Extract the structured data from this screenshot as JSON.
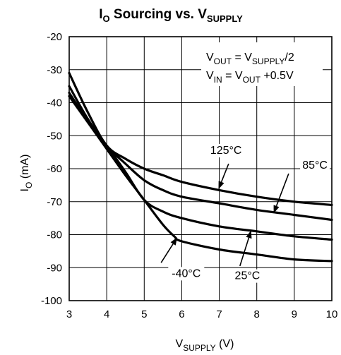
{
  "chart_data": {
    "type": "line",
    "title": {
      "pre": "I",
      "sub1": "O",
      "mid": " Sourcing vs. V",
      "sub2": "SUPPLY"
    },
    "xlabel": {
      "pre": "V",
      "sub": "SUPPLY",
      "post": " (V)"
    },
    "ylabel": {
      "pre": "I",
      "sub": "O",
      "post": " (mA)"
    },
    "xlim": [
      3,
      10
    ],
    "ylim": [
      -100,
      -20
    ],
    "xticks": [
      "3",
      "4",
      "5",
      "6",
      "7",
      "8",
      "9",
      "10"
    ],
    "yticks": [
      "-20",
      "-30",
      "-40",
      "-50",
      "-60",
      "-70",
      "-80",
      "-90",
      "-100"
    ],
    "grid": true,
    "conditions": [
      {
        "pre": "V",
        "sub1": "OUT",
        "mid": " = V",
        "sub2": "SUPPLY",
        "post": "/2"
      },
      {
        "pre": "V",
        "sub1": "IN",
        "mid": " = V",
        "sub2": "OUT",
        "post": " +0.5V"
      }
    ],
    "series": [
      {
        "name": "125°C",
        "x": [
          3,
          3.5,
          4,
          4.5,
          5,
          5.5,
          6,
          7,
          8,
          9,
          10
        ],
        "y": [
          -31,
          -43,
          -53,
          -57,
          -60,
          -62,
          -64,
          -66.5,
          -68.5,
          -70,
          -71
        ]
      },
      {
        "name": "85°C",
        "x": [
          3,
          3.5,
          4,
          4.5,
          5,
          5.5,
          6,
          7,
          8,
          9,
          10
        ],
        "y": [
          -35,
          -45,
          -53,
          -58.5,
          -63.5,
          -66.5,
          -68.5,
          -70.5,
          -72.5,
          -74,
          -75.5
        ]
      },
      {
        "name": "25°C",
        "x": [
          3,
          3.5,
          4,
          4.5,
          5,
          5.5,
          6,
          7,
          8,
          9,
          10
        ],
        "y": [
          -37,
          -45.5,
          -53,
          -61,
          -69.5,
          -73,
          -75,
          -77.5,
          -79,
          -80.5,
          -81.5
        ]
      },
      {
        "name": "-40°C",
        "x": [
          3,
          3.5,
          4,
          4.5,
          5,
          5.5,
          5.8,
          6,
          7,
          8,
          9,
          10
        ],
        "y": [
          -38,
          -46,
          -54,
          -62,
          -69.5,
          -77,
          -80.5,
          -82,
          -84.5,
          -86,
          -87.5,
          -88
        ]
      }
    ],
    "annotations": [
      {
        "text": "125°C",
        "label_x": 7.18,
        "label_y": -55.5,
        "arrow_from": [
          7.25,
          -58.5
        ],
        "arrow_to": [
          6.98,
          -66.2
        ]
      },
      {
        "text": "85°C",
        "label_x": 9.55,
        "label_y": -60,
        "arrow_from": [
          8.85,
          -61.5
        ],
        "arrow_to": [
          8.45,
          -73.5
        ]
      },
      {
        "text": "25°C",
        "label_x": 7.75,
        "label_y": -93.5,
        "arrow_from": [
          7.55,
          -89.5
        ],
        "arrow_to": [
          7.85,
          -78.7
        ]
      },
      {
        "text": "-40°C",
        "label_x": 6.12,
        "label_y": -92.8,
        "arrow_from": [
          5.45,
          -88.5
        ],
        "arrow_to": [
          5.88,
          -80.8
        ]
      }
    ]
  }
}
